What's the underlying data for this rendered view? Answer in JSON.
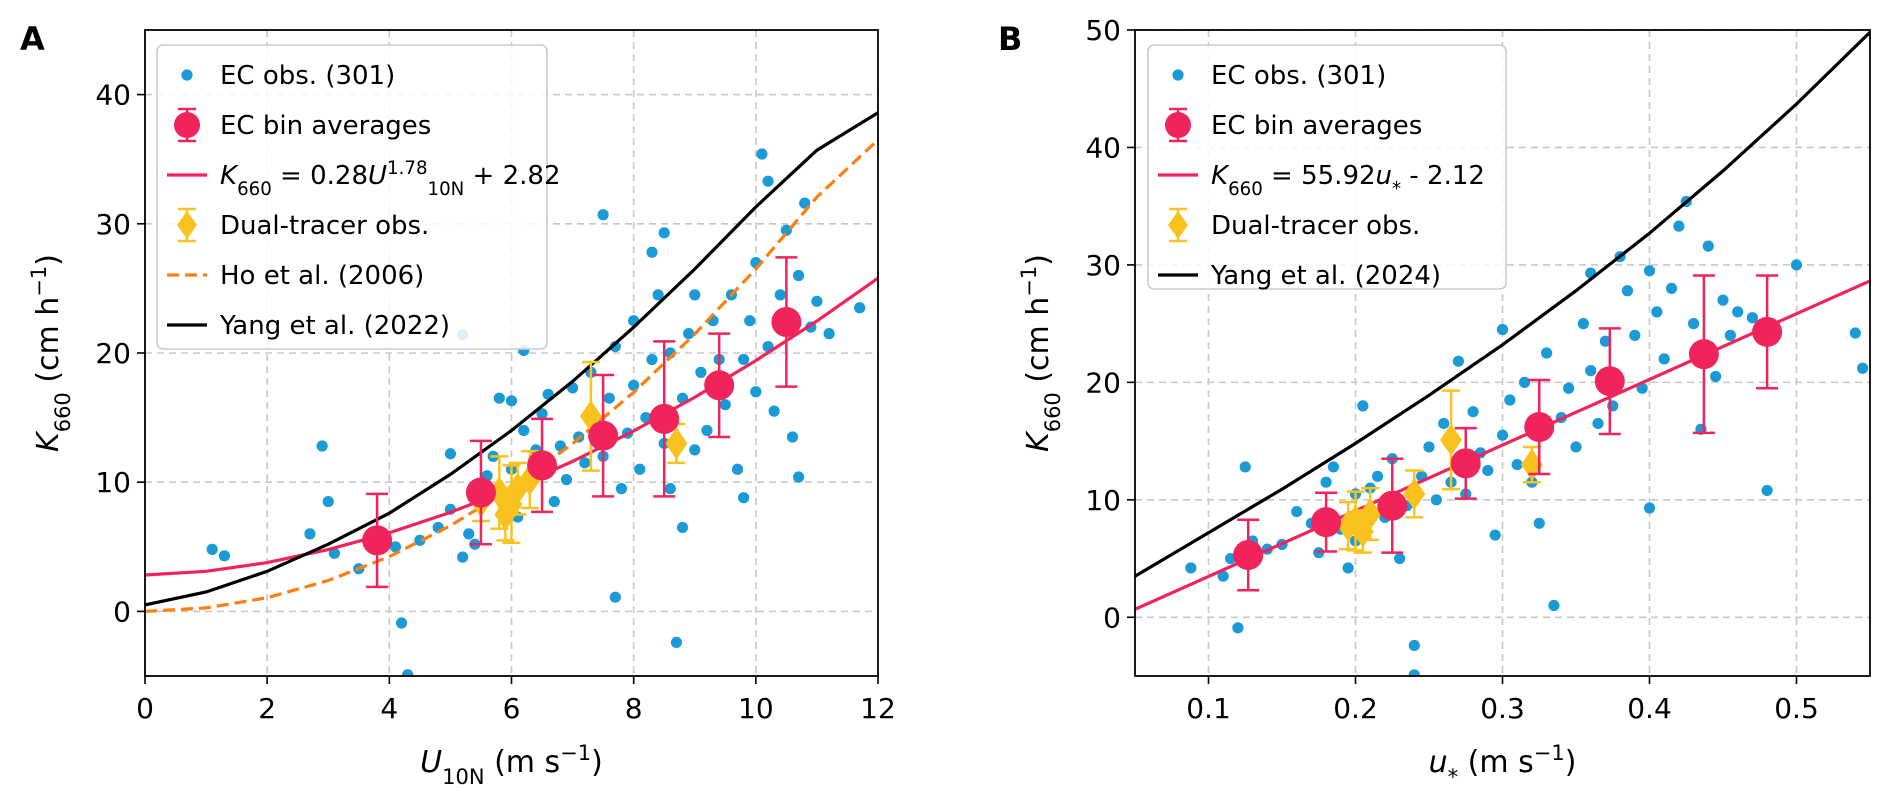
{
  "chart_data": [
    {
      "panel": "A",
      "type": "scatter",
      "xlabel": "U10N (m s−1)",
      "ylabel": "K660 (cm h−1)",
      "xlim": [
        0,
        12
      ],
      "ylim": [
        -5,
        45
      ],
      "xticks": [
        0,
        2,
        4,
        6,
        8,
        10,
        12
      ],
      "yticks": [
        0,
        10,
        20,
        30,
        40
      ],
      "grid": true,
      "legend_position": "top-left",
      "legend": [
        {
          "label": "EC obs. (301)",
          "kind": "dot",
          "color": "#1a9ad6"
        },
        {
          "label": "EC bin averages",
          "kind": "errdot",
          "color": "#f0245a"
        },
        {
          "label": "K660 = 0.28U10N^1.78 + 2.82",
          "kind": "line",
          "color": "#f0245a",
          "dash": false
        },
        {
          "label": "Dual-tracer obs.",
          "kind": "diamond",
          "color": "#f9c21f"
        },
        {
          "label": "Ho et al. (2006)",
          "kind": "line",
          "color": "#ff7f0e",
          "dash": true
        },
        {
          "label": "Yang et al. (2022)",
          "kind": "line",
          "color": "#000000",
          "dash": false
        }
      ],
      "scatter": {
        "name": "EC obs. (301)",
        "color": "#1a9ad6",
        "points": [
          [
            1.1,
            4.8
          ],
          [
            1.3,
            4.3
          ],
          [
            2.7,
            6
          ],
          [
            2.9,
            12.8
          ],
          [
            3.0,
            8.5
          ],
          [
            3.1,
            4.5
          ],
          [
            3.5,
            3.3
          ],
          [
            4.2,
            -0.9
          ],
          [
            4.3,
            -4.9
          ],
          [
            4.1,
            5
          ],
          [
            4.5,
            5.5
          ],
          [
            4.8,
            6.5
          ],
          [
            5.0,
            7.9
          ],
          [
            5.0,
            12.2
          ],
          [
            5.2,
            4.2
          ],
          [
            5.2,
            21.4
          ],
          [
            5.3,
            6
          ],
          [
            5.4,
            5.2
          ],
          [
            5.5,
            9.5
          ],
          [
            5.6,
            10.5
          ],
          [
            5.7,
            12
          ],
          [
            5.8,
            16.5
          ],
          [
            5.9,
            8.8
          ],
          [
            6.0,
            11
          ],
          [
            6.0,
            16.3
          ],
          [
            6.1,
            7.3
          ],
          [
            6.2,
            14
          ],
          [
            6.2,
            20.2
          ],
          [
            6.3,
            9.8
          ],
          [
            6.4,
            12.5
          ],
          [
            6.5,
            15.3
          ],
          [
            6.6,
            16.8
          ],
          [
            6.7,
            8.5
          ],
          [
            6.8,
            12.8
          ],
          [
            6.9,
            10.2
          ],
          [
            7.0,
            17.3
          ],
          [
            7.1,
            13.5
          ],
          [
            7.2,
            11.5
          ],
          [
            7.3,
            18.5
          ],
          [
            7.4,
            14.8
          ],
          [
            7.5,
            30.7
          ],
          [
            7.5,
            12
          ],
          [
            7.6,
            16.5
          ],
          [
            7.7,
            1.1
          ],
          [
            7.7,
            20.5
          ],
          [
            7.8,
            9.5
          ],
          [
            7.9,
            13.8
          ],
          [
            8.0,
            22.5
          ],
          [
            8.0,
            17.5
          ],
          [
            8.1,
            11
          ],
          [
            8.2,
            15
          ],
          [
            8.3,
            19.5
          ],
          [
            8.3,
            27.8
          ],
          [
            8.4,
            24.5
          ],
          [
            8.5,
            29.3
          ],
          [
            8.5,
            13
          ],
          [
            8.6,
            20
          ],
          [
            8.6,
            9.5
          ],
          [
            8.7,
            -2.4
          ],
          [
            8.8,
            6.5
          ],
          [
            8.8,
            16.5
          ],
          [
            8.9,
            21.5
          ],
          [
            9.0,
            24.5
          ],
          [
            9.0,
            12.5
          ],
          [
            9.1,
            18.5
          ],
          [
            9.2,
            14
          ],
          [
            9.3,
            22.5
          ],
          [
            9.4,
            19.5
          ],
          [
            9.5,
            16
          ],
          [
            9.6,
            24.5
          ],
          [
            9.7,
            11
          ],
          [
            9.8,
            19.5
          ],
          [
            9.8,
            8.8
          ],
          [
            9.9,
            22.5
          ],
          [
            10.0,
            17
          ],
          [
            10.0,
            27
          ],
          [
            10.1,
            35.4
          ],
          [
            10.2,
            33.3
          ],
          [
            10.2,
            20.5
          ],
          [
            10.3,
            15.5
          ],
          [
            10.4,
            24.5
          ],
          [
            10.5,
            29.5
          ],
          [
            10.6,
            22.5
          ],
          [
            10.6,
            13.5
          ],
          [
            10.7,
            10.4
          ],
          [
            10.7,
            26
          ],
          [
            10.8,
            31.6
          ],
          [
            10.9,
            22
          ],
          [
            11.0,
            24
          ],
          [
            11.2,
            21.5
          ],
          [
            11.7,
            23.5
          ]
        ]
      },
      "bins": {
        "name": "EC bin averages",
        "color": "#f0245a",
        "points": [
          {
            "x": 3.8,
            "y": 5.5,
            "err": 3.6
          },
          {
            "x": 5.5,
            "y": 9.2,
            "err": 4.0
          },
          {
            "x": 6.5,
            "y": 11.3,
            "err": 3.6
          },
          {
            "x": 7.5,
            "y": 13.6,
            "err": 4.7
          },
          {
            "x": 8.5,
            "y": 14.9,
            "err": 6.0
          },
          {
            "x": 9.4,
            "y": 17.5,
            "err": 4.0
          },
          {
            "x": 10.5,
            "y": 22.4,
            "err": 5.0
          }
        ]
      },
      "dual_tracer": {
        "name": "Dual-tracer obs.",
        "color": "#f9c21f",
        "points": [
          {
            "x": 5.5,
            "y": 8.5,
            "err": 1.5
          },
          {
            "x": 5.8,
            "y": 9.2,
            "err": 2.8
          },
          {
            "x": 5.9,
            "y": 7.5,
            "err": 2.0
          },
          {
            "x": 6.0,
            "y": 8.3,
            "err": 3.0
          },
          {
            "x": 6.1,
            "y": 9.5,
            "err": 2.0
          },
          {
            "x": 6.3,
            "y": 10.2,
            "err": 2.2
          },
          {
            "x": 7.3,
            "y": 15.1,
            "err": 4.2
          },
          {
            "x": 8.7,
            "y": 13.0,
            "err": 1.5
          }
        ]
      },
      "curves": [
        {
          "name": "K660 = 0.28U10N^1.78 + 2.82",
          "color": "#f0245a",
          "dash": false,
          "x": [
            0,
            1,
            2,
            3,
            4,
            5,
            6,
            7,
            8,
            9,
            10,
            11,
            12
          ],
          "y": [
            2.82,
            3.1,
            3.78,
            4.78,
            6.08,
            7.66,
            9.51,
            11.61,
            13.97,
            16.57,
            19.41,
            22.48,
            25.79
          ]
        },
        {
          "name": "Ho et al. (2006)",
          "color": "#ff7f0e",
          "dash": true,
          "x": [
            0,
            1,
            2,
            3,
            4,
            5,
            6,
            7,
            8,
            9,
            10,
            11,
            12
          ],
          "y": [
            0,
            0.27,
            1.06,
            2.39,
            4.24,
            6.63,
            9.54,
            12.99,
            16.96,
            21.47,
            26.5,
            32.07,
            36.5
          ]
        },
        {
          "name": "Yang et al. (2022)",
          "color": "#000000",
          "dash": false,
          "x": [
            0,
            1,
            2,
            3,
            4,
            5,
            6,
            7,
            8,
            9,
            10,
            11,
            12
          ],
          "y": [
            0.5,
            1.5,
            3.1,
            5.2,
            7.6,
            10.6,
            14.0,
            17.8,
            22.0,
            26.5,
            31.3,
            35.7,
            38.6
          ]
        }
      ]
    },
    {
      "panel": "B",
      "type": "scatter",
      "xlabel": "u* (m s−1)",
      "ylabel": "K660 (cm h−1)",
      "xlim": [
        0.05,
        0.55
      ],
      "ylim": [
        -5,
        50
      ],
      "xticks": [
        0.1,
        0.2,
        0.3,
        0.4,
        0.5
      ],
      "yticks": [
        0,
        10,
        20,
        30,
        40,
        50
      ],
      "grid": true,
      "legend_position": "top-left",
      "legend": [
        {
          "label": "EC obs. (301)",
          "kind": "dot",
          "color": "#1a9ad6"
        },
        {
          "label": "EC bin averages",
          "kind": "errdot",
          "color": "#f0245a"
        },
        {
          "label": "K660 = 55.92u* - 2.12",
          "kind": "line",
          "color": "#f0245a",
          "dash": false
        },
        {
          "label": "Dual-tracer obs.",
          "kind": "diamond",
          "color": "#f9c21f"
        },
        {
          "label": "Yang et al. (2024)",
          "kind": "line",
          "color": "#000000",
          "dash": false
        }
      ],
      "scatter": {
        "name": "EC obs. (301)",
        "color": "#1a9ad6",
        "points": [
          [
            0.088,
            4.2
          ],
          [
            0.11,
            3.5
          ],
          [
            0.115,
            5
          ],
          [
            0.12,
            -0.9
          ],
          [
            0.125,
            12.8
          ],
          [
            0.13,
            6.5
          ],
          [
            0.14,
            5.8
          ],
          [
            0.15,
            6.2
          ],
          [
            0.16,
            9
          ],
          [
            0.17,
            8
          ],
          [
            0.175,
            5.5
          ],
          [
            0.18,
            11.5
          ],
          [
            0.185,
            12.8
          ],
          [
            0.19,
            7.5
          ],
          [
            0.195,
            4.2
          ],
          [
            0.2,
            10.5
          ],
          [
            0.2,
            6.5
          ],
          [
            0.205,
            18
          ],
          [
            0.21,
            11
          ],
          [
            0.215,
            12
          ],
          [
            0.22,
            8.5
          ],
          [
            0.225,
            13.5
          ],
          [
            0.23,
            5
          ],
          [
            0.235,
            9.5
          ],
          [
            0.24,
            -2.4
          ],
          [
            0.24,
            -4.9
          ],
          [
            0.245,
            12
          ],
          [
            0.25,
            14.5
          ],
          [
            0.255,
            10
          ],
          [
            0.26,
            16.5
          ],
          [
            0.265,
            11.5
          ],
          [
            0.27,
            21.8
          ],
          [
            0.275,
            10.5
          ],
          [
            0.28,
            17.5
          ],
          [
            0.285,
            14
          ],
          [
            0.29,
            12.5
          ],
          [
            0.295,
            7
          ],
          [
            0.3,
            24.5
          ],
          [
            0.3,
            15.5
          ],
          [
            0.305,
            18.5
          ],
          [
            0.31,
            13
          ],
          [
            0.315,
            20
          ],
          [
            0.32,
            11.5
          ],
          [
            0.325,
            8
          ],
          [
            0.33,
            22.5
          ],
          [
            0.335,
            1
          ],
          [
            0.34,
            17
          ],
          [
            0.345,
            19.5
          ],
          [
            0.35,
            14.5
          ],
          [
            0.355,
            25
          ],
          [
            0.36,
            29.3
          ],
          [
            0.36,
            21
          ],
          [
            0.365,
            16.5
          ],
          [
            0.37,
            23.5
          ],
          [
            0.375,
            18
          ],
          [
            0.38,
            30.7
          ],
          [
            0.385,
            27.8
          ],
          [
            0.39,
            24
          ],
          [
            0.395,
            19.5
          ],
          [
            0.4,
            9.3
          ],
          [
            0.4,
            29.5
          ],
          [
            0.405,
            26
          ],
          [
            0.41,
            22
          ],
          [
            0.415,
            28
          ],
          [
            0.42,
            33.3
          ],
          [
            0.425,
            35.4
          ],
          [
            0.43,
            25
          ],
          [
            0.435,
            16
          ],
          [
            0.44,
            31.6
          ],
          [
            0.445,
            20.5
          ],
          [
            0.45,
            27
          ],
          [
            0.455,
            24
          ],
          [
            0.46,
            26
          ],
          [
            0.47,
            25.5
          ],
          [
            0.48,
            10.8
          ],
          [
            0.5,
            30
          ],
          [
            0.54,
            24.2
          ],
          [
            0.545,
            21.2
          ]
        ]
      },
      "bins": {
        "name": "EC bin averages",
        "color": "#f0245a",
        "points": [
          {
            "x": 0.127,
            "y": 5.3,
            "err": 3.0
          },
          {
            "x": 0.18,
            "y": 8.1,
            "err": 2.5
          },
          {
            "x": 0.225,
            "y": 9.5,
            "err": 4.0
          },
          {
            "x": 0.275,
            "y": 13.1,
            "err": 3.0
          },
          {
            "x": 0.325,
            "y": 16.2,
            "err": 4.0
          },
          {
            "x": 0.373,
            "y": 20.1,
            "err": 4.5
          },
          {
            "x": 0.437,
            "y": 22.4,
            "err": 6.7
          },
          {
            "x": 0.48,
            "y": 24.3,
            "err": 4.8
          }
        ]
      },
      "dual_tracer": {
        "name": "Dual-tracer obs.",
        "color": "#f9c21f",
        "points": [
          {
            "x": 0.195,
            "y": 7.8,
            "err": 2.0
          },
          {
            "x": 0.2,
            "y": 8.2,
            "err": 2.5
          },
          {
            "x": 0.205,
            "y": 7.3,
            "err": 1.8
          },
          {
            "x": 0.21,
            "y": 8.8,
            "err": 2.2
          },
          {
            "x": 0.24,
            "y": 10.5,
            "err": 2.0
          },
          {
            "x": 0.265,
            "y": 15.1,
            "err": 4.2
          },
          {
            "x": 0.32,
            "y": 13.0,
            "err": 1.5
          }
        ]
      },
      "curves": [
        {
          "name": "K660 = 55.92u* - 2.12",
          "color": "#f0245a",
          "dash": false,
          "x": [
            0.05,
            0.55
          ],
          "y": [
            0.68,
            28.64
          ]
        },
        {
          "name": "Yang et al. (2024)",
          "color": "#000000",
          "dash": false,
          "x": [
            0.05,
            0.1,
            0.15,
            0.2,
            0.25,
            0.3,
            0.35,
            0.4,
            0.45,
            0.5,
            0.55
          ],
          "y": [
            3.5,
            7.2,
            10.9,
            14.8,
            18.9,
            23.2,
            27.8,
            32.7,
            38.0,
            43.7,
            49.8
          ]
        }
      ]
    }
  ]
}
